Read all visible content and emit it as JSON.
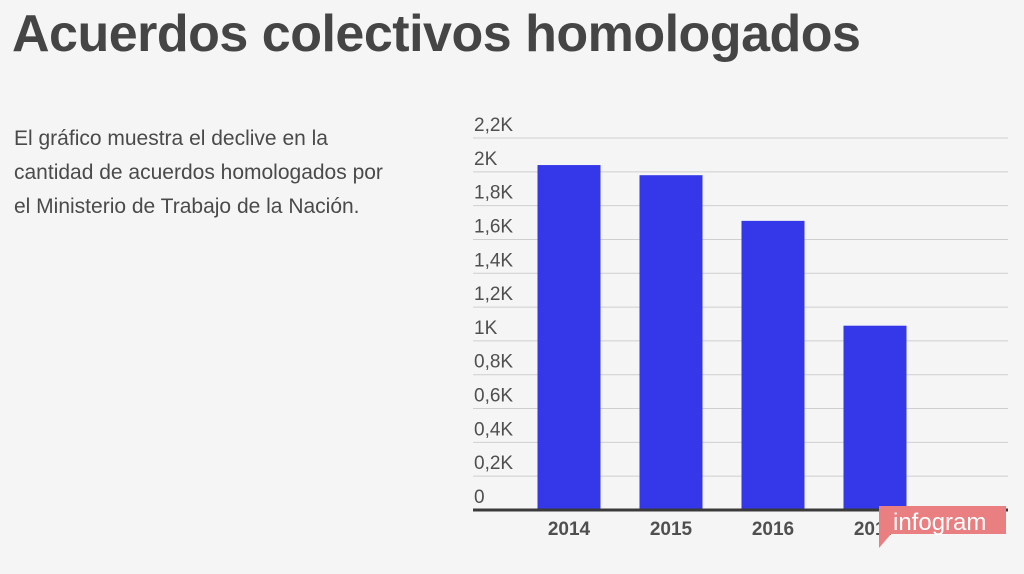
{
  "title": "Acuerdos colectivos homologados",
  "description": "El gráfico muestra el declive en la cantidad de acuerdos homologados por el Ministerio de Trabajo de la Nación.",
  "badge": {
    "text": "infogram",
    "color": "#ea7f82"
  },
  "chart_data": {
    "type": "bar",
    "categories": [
      "2014",
      "2015",
      "2016",
      "2017"
    ],
    "values": [
      2040,
      1980,
      1710,
      1090
    ],
    "ylim": [
      0,
      2200
    ],
    "yticks": [
      0,
      200,
      400,
      600,
      800,
      1000,
      1200,
      1400,
      1600,
      1800,
      2000,
      2200
    ],
    "ytick_labels": [
      "0",
      "0,2K",
      "0,4K",
      "0,6K",
      "0,8K",
      "1K",
      "1,2K",
      "1,4K",
      "1,6K",
      "1,8K",
      "2K",
      "2,2K"
    ],
    "bar_color": "#3438e8",
    "grid": true,
    "xlabel": "",
    "ylabel": ""
  }
}
